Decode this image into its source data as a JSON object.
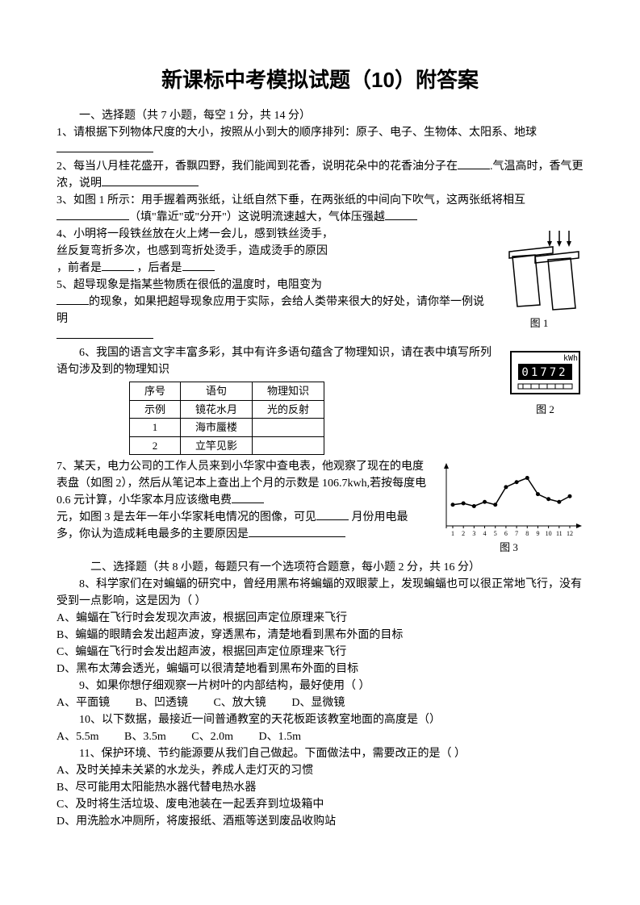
{
  "title": "新课标中考模拟试题（10）附答案",
  "section1": "一、选择题（共 7 小题，每空 1 分，共 14 分）",
  "q1": "1、请根据下列物体尺度的大小，按照从小到大的顺序排列：原子、电子、生物体、太阳系、地球",
  "q2a": "2、每当八月桂花盛开，香飘四野，我们能闻到花香，说明花朵中的花香油分子在",
  "q2b": ".气温高时，香气更浓，说明",
  "q3a": "3、如图 1 所示：用手握着两张纸，让纸自然下垂，在两张纸的中间向下吹气，这两张纸将相互",
  "q3b": "（填\"靠近\"或\"分开\"）这说明流速越大，气体压强越",
  "q4a": "4、小明将一段铁丝放在火上烤一会儿，感到铁丝烫手，",
  "q4a2": "丝反复弯折多次，也感到弯折处烫手，造成烫手的原因",
  "q4b": "，前者是",
  "q4c": "，后者是",
  "q5a": "5、超导现象是指某些物质在很低的温度时，电阻变为",
  "q5b": "的现象，如果把超导现象应用于实际，会给人类带来很大的好处，请你举一例说明",
  "fig1_label": "图 1",
  "q6": "6、我国的语言文字丰富多彩，其中有许多语句蕴含了物理知识，请在表中填写所列语句涉及到的物理知识",
  "table": {
    "headers": [
      "序号",
      "语句",
      "物理知识"
    ],
    "rows": [
      [
        "示例",
        "镜花水月",
        "光的反射"
      ],
      [
        "1",
        "海市蜃楼",
        ""
      ],
      [
        "2",
        "立竿见影",
        ""
      ]
    ]
  },
  "fig2_label": "图 2",
  "meter_unit": "kWh",
  "meter_value": "01772",
  "q7a": "7、某天，电力公司的工作人员来到小华家中查电表，他观察了现在的电度表盘（如图 2），然后从笔记本上查出上个月的示数是 106.7kwh,若按每度电 0.6 元计算，小华家本月应该缴电费",
  "q7b": "元，如图 3 是去年一年小华家耗电情况的图像，可见",
  "q7c": "月份用电最多，你认为造成耗电最多的主要原因是",
  "fig3_label": "图 3",
  "section2": "二、选择题（共 8 小题，每题只有一个选项符合题意，每小题 2 分，共 16 分）",
  "q8": "8、科学家们在对蝙蝠的研究中，曾经用黑布将蝙蝠的双眼蒙上，发现蝙蝠也可以很正常地飞行，没有受到一点影响，这是因为（    ）",
  "q8A": "A、蝙蝠在飞行时会发现次声波，根据回声定位原理来飞行",
  "q8B": "B、蝙蝠的眼睛会发出超声波，穿透黑布，清楚地看到黑布外面的目标",
  "q8C": "C、蝙蝠在飞行时会发出超声波，根据回声定位原理来飞行",
  "q8D": "D、黑布太薄会透光，蝙蝠可以很清楚地看到黑布外面的目标",
  "q9": "9、如果你想仔细观察一片树叶的内部结构，最好使用（    ）",
  "q9A": "A、平面镜",
  "q9B": "B、凹透镜",
  "q9C": "C、放大镜",
  "q9D": "D、显微镜",
  "q10": "10、以下数据，最接近一间普通教室的天花板距该教室地面的高度是（）",
  "q10A": "A、5.5m",
  "q10B": "B、3.5m",
  "q10C": "C、2.0m",
  "q10D": "D、1.5m",
  "q11": "11、保护环境、节约能源要从我们自己做起。下面做法中，需要改正的是（    ）",
  "q11A": "A、及时关掉未关紧的水龙头，养成人走灯灭的习惯",
  "q11B": "B、尽可能用太阳能热水器代替电热水器",
  "q11C": "C、及时将生活垃圾、废电池装在一起丢弃到垃圾箱中",
  "q11D": "D、用洗脸水冲厕所，将废报纸、酒瓶等送到废品收购站",
  "fig3_xticks": [
    "1",
    "2",
    "3",
    "4",
    "5",
    "6",
    "7",
    "8",
    "9",
    "10",
    "11",
    "12"
  ],
  "fig3_values": [
    30,
    32,
    28,
    34,
    30,
    55,
    62,
    68,
    45,
    38,
    34,
    42
  ],
  "colors": {
    "text": "#000000",
    "bg": "#ffffff",
    "line": "#000000"
  }
}
